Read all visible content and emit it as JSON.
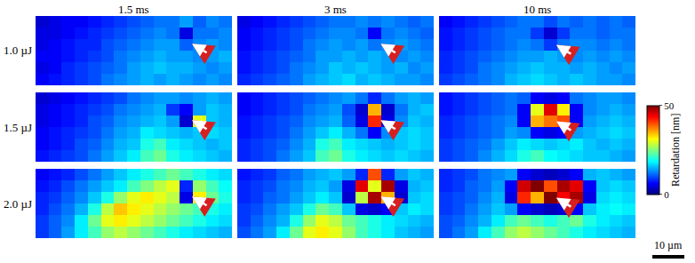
{
  "chart_data": {
    "type": "heatmap",
    "columns": [
      "1.5 ms",
      "3 ms",
      "10 ms"
    ],
    "rows": [
      "1.0 µJ",
      "1.5 µJ",
      "2.0 µJ"
    ],
    "panels": [
      [
        [
          [
            4,
            5,
            6,
            6,
            7,
            8,
            9,
            10,
            11,
            12,
            12,
            14,
            11,
            13,
            12
          ],
          [
            5,
            5,
            6,
            7,
            8,
            9,
            10,
            11,
            12,
            13,
            12,
            5,
            12,
            12,
            13
          ],
          [
            5,
            6,
            7,
            8,
            8,
            10,
            11,
            12,
            13,
            14,
            14,
            11,
            13,
            14,
            13
          ],
          [
            6,
            6,
            7,
            8,
            9,
            10,
            12,
            13,
            14,
            15,
            14,
            14,
            13,
            14,
            15
          ],
          [
            5,
            6,
            8,
            9,
            10,
            11,
            12,
            14,
            15,
            16,
            15,
            15,
            14,
            13,
            14
          ],
          [
            6,
            7,
            8,
            9,
            10,
            12,
            13,
            14,
            15,
            14,
            15,
            14,
            13,
            14,
            13
          ]
        ],
        [
          [
            5,
            6,
            7,
            8,
            9,
            10,
            11,
            12,
            12,
            13,
            12,
            13,
            12,
            11,
            12
          ],
          [
            6,
            7,
            8,
            9,
            10,
            11,
            12,
            13,
            13,
            12,
            6,
            12,
            13,
            12,
            11
          ],
          [
            6,
            7,
            8,
            9,
            10,
            12,
            13,
            14,
            13,
            14,
            12,
            13,
            14,
            13,
            12
          ],
          [
            7,
            8,
            9,
            10,
            11,
            12,
            14,
            14,
            15,
            14,
            15,
            14,
            13,
            14,
            13
          ],
          [
            7,
            8,
            9,
            10,
            12,
            13,
            14,
            16,
            15,
            16,
            15,
            14,
            15,
            13,
            14
          ],
          [
            8,
            9,
            10,
            11,
            12,
            14,
            15,
            16,
            17,
            15,
            16,
            15,
            14,
            14,
            13
          ]
        ],
        [
          [
            6,
            7,
            8,
            9,
            10,
            11,
            12,
            12,
            10,
            12,
            11,
            12,
            11,
            12,
            11
          ],
          [
            7,
            8,
            9,
            10,
            11,
            12,
            12,
            9,
            4,
            9,
            12,
            12,
            11,
            12,
            12
          ],
          [
            7,
            8,
            9,
            10,
            11,
            12,
            13,
            12,
            9,
            12,
            13,
            13,
            12,
            13,
            12
          ],
          [
            8,
            9,
            10,
            11,
            12,
            13,
            14,
            14,
            15,
            14,
            13,
            14,
            13,
            14,
            13
          ],
          [
            8,
            9,
            10,
            12,
            13,
            14,
            15,
            16,
            15,
            15,
            14,
            15,
            14,
            13,
            14
          ],
          [
            9,
            10,
            11,
            12,
            13,
            15,
            16,
            17,
            16,
            15,
            16,
            15,
            14,
            14,
            13
          ]
        ]
      ],
      [
        [
          [
            4,
            5,
            6,
            7,
            8,
            9,
            10,
            12,
            13,
            14,
            14,
            13,
            14,
            15,
            14
          ],
          [
            5,
            6,
            7,
            8,
            9,
            10,
            12,
            13,
            14,
            15,
            9,
            6,
            14,
            16,
            15
          ],
          [
            5,
            6,
            7,
            8,
            10,
            11,
            13,
            14,
            15,
            16,
            14,
            4,
            30,
            16,
            15
          ],
          [
            6,
            7,
            8,
            9,
            10,
            12,
            14,
            15,
            18,
            17,
            16,
            15,
            16,
            17,
            16
          ],
          [
            6,
            7,
            8,
            10,
            11,
            13,
            15,
            16,
            20,
            22,
            18,
            17,
            16,
            15,
            16
          ],
          [
            7,
            8,
            9,
            10,
            12,
            14,
            16,
            18,
            22,
            24,
            20,
            18,
            17,
            16,
            15
          ]
        ],
        [
          [
            6,
            7,
            8,
            9,
            10,
            11,
            12,
            13,
            14,
            12,
            8,
            12,
            14,
            15,
            14
          ],
          [
            6,
            7,
            8,
            9,
            10,
            12,
            13,
            14,
            10,
            4,
            35,
            4,
            12,
            15,
            16
          ],
          [
            7,
            8,
            9,
            10,
            11,
            13,
            14,
            15,
            11,
            5,
            42,
            5,
            13,
            16,
            15
          ],
          [
            7,
            8,
            9,
            10,
            12,
            14,
            16,
            18,
            15,
            12,
            6,
            13,
            16,
            17,
            16
          ],
          [
            8,
            9,
            10,
            11,
            13,
            15,
            20,
            22,
            18,
            17,
            16,
            15,
            16,
            17,
            16
          ],
          [
            8,
            9,
            10,
            12,
            14,
            16,
            22,
            24,
            20,
            18,
            17,
            16,
            17,
            16,
            15
          ]
        ],
        [
          [
            7,
            8,
            9,
            10,
            11,
            12,
            11,
            6,
            5,
            6,
            12,
            13,
            14,
            14,
            13
          ],
          [
            7,
            8,
            9,
            10,
            11,
            12,
            6,
            30,
            45,
            32,
            6,
            13,
            14,
            15,
            14
          ],
          [
            8,
            9,
            10,
            11,
            12,
            13,
            6,
            35,
            38,
            40,
            6,
            14,
            15,
            16,
            15
          ],
          [
            8,
            9,
            10,
            11,
            12,
            14,
            13,
            6,
            5,
            6,
            14,
            15,
            16,
            17,
            16
          ],
          [
            9,
            10,
            11,
            12,
            14,
            16,
            18,
            17,
            16,
            17,
            18,
            16,
            15,
            16,
            15
          ],
          [
            9,
            10,
            11,
            13,
            15,
            17,
            20,
            22,
            19,
            18,
            17,
            16,
            16,
            15,
            14
          ]
        ]
      ],
      [
        [
          [
            6,
            7,
            8,
            10,
            12,
            14,
            16,
            18,
            20,
            22,
            24,
            22,
            20,
            18,
            17
          ],
          [
            7,
            8,
            10,
            12,
            14,
            16,
            18,
            22,
            25,
            28,
            30,
            8,
            26,
            22,
            19
          ],
          [
            8,
            9,
            11,
            13,
            16,
            20,
            26,
            30,
            32,
            30,
            28,
            5,
            32,
            24,
            20
          ],
          [
            8,
            10,
            12,
            15,
            20,
            28,
            34,
            32,
            30,
            28,
            26,
            24,
            22,
            20,
            18
          ],
          [
            9,
            11,
            13,
            18,
            24,
            30,
            32,
            30,
            28,
            26,
            24,
            22,
            20,
            18,
            17
          ],
          [
            9,
            11,
            14,
            18,
            22,
            26,
            28,
            26,
            24,
            22,
            20,
            18,
            17,
            16,
            15
          ]
        ],
        [
          [
            7,
            8,
            9,
            11,
            12,
            14,
            15,
            16,
            14,
            8,
            40,
            8,
            14,
            16,
            15
          ],
          [
            8,
            9,
            10,
            12,
            13,
            15,
            16,
            14,
            5,
            45,
            30,
            48,
            5,
            15,
            16
          ],
          [
            8,
            9,
            11,
            12,
            14,
            16,
            18,
            16,
            4,
            28,
            48,
            35,
            4,
            16,
            17
          ],
          [
            9,
            10,
            12,
            14,
            16,
            20,
            24,
            22,
            16,
            5,
            4,
            6,
            16,
            18,
            17
          ],
          [
            9,
            11,
            13,
            15,
            20,
            26,
            30,
            28,
            24,
            22,
            20,
            18,
            17,
            16,
            15
          ],
          [
            10,
            12,
            14,
            18,
            24,
            30,
            32,
            30,
            26,
            22,
            20,
            18,
            16,
            15,
            14
          ]
        ],
        [
          [
            8,
            9,
            10,
            12,
            13,
            14,
            6,
            4,
            3,
            4,
            6,
            15,
            16,
            15,
            14
          ],
          [
            8,
            9,
            11,
            12,
            14,
            6,
            46,
            50,
            40,
            48,
            45,
            6,
            16,
            17,
            16
          ],
          [
            9,
            10,
            11,
            13,
            15,
            5,
            42,
            35,
            50,
            44,
            48,
            5,
            17,
            18,
            17
          ],
          [
            9,
            10,
            12,
            14,
            16,
            14,
            6,
            4,
            3,
            4,
            6,
            16,
            18,
            19,
            18
          ],
          [
            10,
            11,
            13,
            15,
            18,
            22,
            24,
            22,
            20,
            22,
            24,
            20,
            18,
            17,
            16
          ],
          [
            10,
            12,
            14,
            18,
            22,
            26,
            28,
            26,
            24,
            22,
            20,
            18,
            17,
            16,
            15
          ]
        ]
      ]
    ],
    "colorbar": {
      "title": "Retardation [nm]",
      "range": [
        0,
        50
      ],
      "ticks": [
        0,
        50
      ]
    },
    "scale_bar": "10 µm",
    "tick_labels": false
  }
}
